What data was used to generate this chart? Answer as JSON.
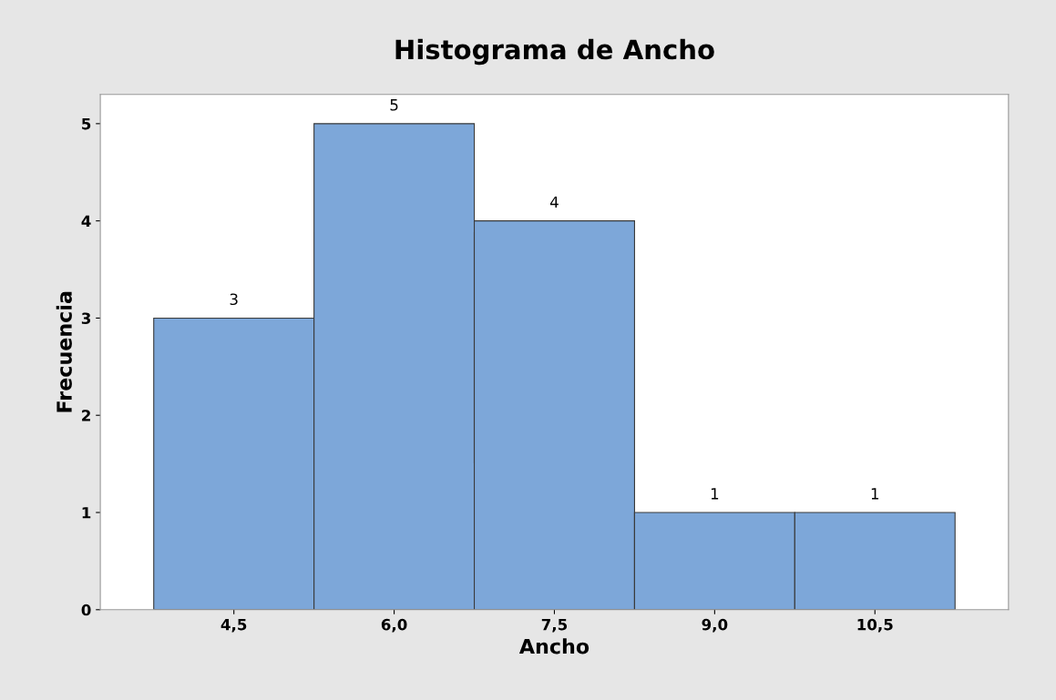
{
  "chart_data": {
    "type": "histogram",
    "title": "Histograma de Ancho",
    "xlabel": "Ancho",
    "ylabel": "Frecuencia",
    "bins": [
      3.75,
      5.25,
      6.75,
      8.25,
      9.75,
      11.25
    ],
    "values": [
      3,
      5,
      4,
      1,
      1
    ],
    "color": "#7da7d9",
    "xlim": [
      3.25,
      11.75
    ],
    "ylim": [
      0,
      5.3
    ],
    "xticks": [
      {
        "value": 4.5,
        "label": "4,5"
      },
      {
        "value": 6.0,
        "label": "6,0"
      },
      {
        "value": 7.5,
        "label": "7,5"
      },
      {
        "value": 9.0,
        "label": "9,0"
      },
      {
        "value": 10.5,
        "label": "10,5"
      }
    ],
    "yticks": [
      0,
      1,
      2,
      3,
      4,
      5
    ],
    "data_labels": true,
    "grid": false,
    "legend": false
  }
}
